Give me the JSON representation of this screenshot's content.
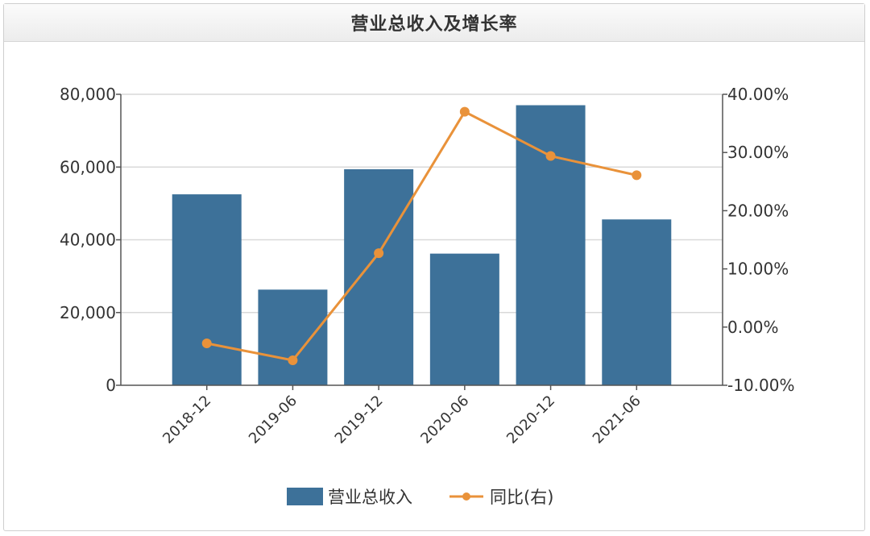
{
  "chart_data": {
    "type": "bar",
    "title": "营业总收入及增长率",
    "categories": [
      "2018-12",
      "2019-06",
      "2019-12",
      "2020-06",
      "2020-12",
      "2021-06"
    ],
    "series": [
      {
        "name": "营业总收入",
        "type": "bar",
        "axis": "left",
        "color": "#3d7199",
        "values": [
          52500,
          26300,
          59400,
          36200,
          77000,
          45600
        ]
      },
      {
        "name": "同比(右)",
        "type": "line",
        "axis": "right",
        "color": "#e9923a",
        "values": [
          -2.8,
          -5.7,
          12.7,
          37.0,
          29.4,
          26.1
        ]
      }
    ],
    "y_left": {
      "min": 0,
      "max": 80000,
      "ticks": [
        "0",
        "20,000",
        "40,000",
        "60,000",
        "80,000"
      ]
    },
    "y_right": {
      "min": -10,
      "max": 40,
      "ticks": [
        "-10.00%",
        "0.00%",
        "10.00%",
        "20.00%",
        "30.00%",
        "40.00%"
      ]
    },
    "grid": true,
    "legend_position": "bottom"
  }
}
